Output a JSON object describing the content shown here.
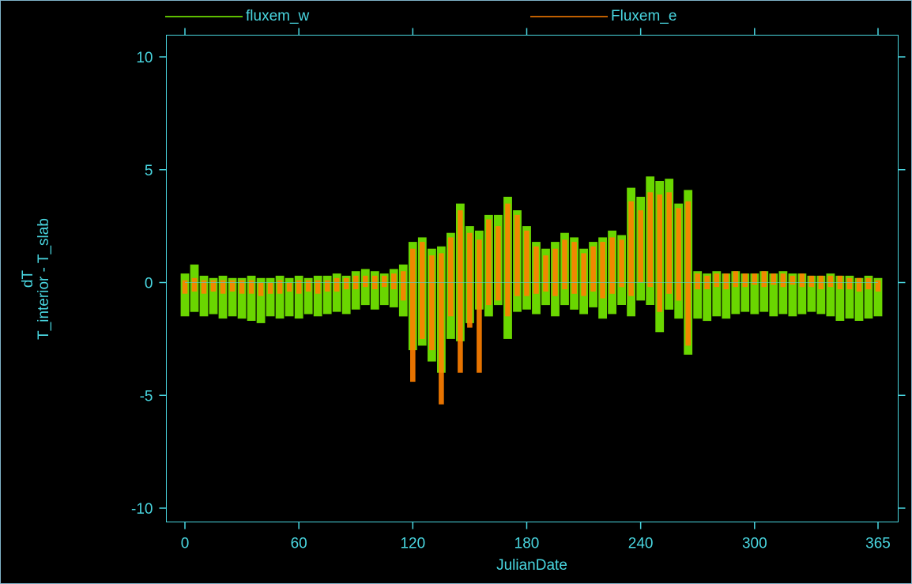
{
  "chart_data": {
    "type": "line",
    "title": "",
    "xlabel": "JulianDate",
    "ylabel_lines": [
      "dT",
      "T_interior - T_slab"
    ],
    "xlim": [
      0,
      365
    ],
    "ylim": [
      -11,
      11
    ],
    "xticks": [
      0,
      60,
      120,
      180,
      240,
      300,
      365
    ],
    "xtick_labels": [
      "0",
      "60",
      "120",
      "180",
      "240",
      "300",
      "365"
    ],
    "yticks": [
      10,
      5,
      0,
      -5,
      -10
    ],
    "ytick_labels": [
      "10",
      "5",
      "0",
      "-5",
      "-10"
    ],
    "grid": false,
    "legend_position": "top",
    "x_step": 5,
    "series": [
      {
        "name": "fluxem_w",
        "color": "#7cfc00",
        "x": [
          0,
          5,
          10,
          15,
          20,
          25,
          30,
          35,
          40,
          45,
          50,
          55,
          60,
          65,
          70,
          75,
          80,
          85,
          90,
          95,
          100,
          105,
          110,
          115,
          120,
          125,
          130,
          135,
          140,
          145,
          150,
          155,
          160,
          165,
          170,
          175,
          180,
          185,
          190,
          195,
          200,
          205,
          210,
          215,
          220,
          225,
          230,
          235,
          240,
          245,
          250,
          255,
          260,
          265,
          270,
          275,
          280,
          285,
          290,
          295,
          300,
          305,
          310,
          315,
          320,
          325,
          330,
          335,
          340,
          345,
          350,
          355,
          360,
          365
        ],
        "min": [
          -1.5,
          -1.3,
          -1.5,
          -1.4,
          -1.6,
          -1.5,
          -1.6,
          -1.7,
          -1.8,
          -1.5,
          -1.6,
          -1.5,
          -1.6,
          -1.4,
          -1.5,
          -1.4,
          -1.3,
          -1.4,
          -1.2,
          -1.0,
          -1.2,
          -1.0,
          -1.1,
          -1.5,
          -3.0,
          -2.8,
          -3.5,
          -4.0,
          -2.5,
          -2.6,
          -1.8,
          -1.2,
          -1.5,
          -1.0,
          -2.5,
          -1.3,
          -1.2,
          -1.4,
          -1.0,
          -1.5,
          -1.0,
          -1.2,
          -1.4,
          -1.1,
          -1.6,
          -1.4,
          -1.0,
          -1.5,
          -0.8,
          -1.0,
          -2.2,
          -1.2,
          -1.6,
          -3.2,
          -1.6,
          -1.7,
          -1.5,
          -1.6,
          -1.4,
          -1.3,
          -1.4,
          -1.3,
          -1.5,
          -1.4,
          -1.5,
          -1.4,
          -1.3,
          -1.4,
          -1.5,
          -1.7,
          -1.6,
          -1.7,
          -1.6,
          -1.5
        ],
        "max": [
          0.4,
          0.8,
          0.3,
          0.2,
          0.3,
          0.2,
          0.2,
          0.3,
          0.2,
          0.2,
          0.3,
          0.2,
          0.3,
          0.2,
          0.3,
          0.3,
          0.4,
          0.3,
          0.5,
          0.6,
          0.5,
          0.4,
          0.6,
          0.8,
          1.8,
          2.0,
          1.5,
          1.6,
          2.2,
          3.5,
          2.5,
          2.3,
          3.0,
          3.0,
          3.8,
          3.2,
          2.5,
          1.8,
          1.5,
          1.8,
          2.2,
          2.0,
          1.5,
          1.8,
          2.0,
          2.3,
          2.1,
          4.2,
          3.8,
          4.7,
          4.5,
          4.6,
          3.5,
          4.1,
          0.5,
          0.4,
          0.5,
          0.4,
          0.5,
          0.4,
          0.4,
          0.5,
          0.4,
          0.5,
          0.4,
          0.4,
          0.3,
          0.3,
          0.4,
          0.3,
          0.3,
          0.2,
          0.3,
          0.2
        ]
      },
      {
        "name": "Fluxem_e",
        "color": "#ff7f00",
        "x": [
          0,
          5,
          10,
          15,
          20,
          25,
          30,
          35,
          40,
          45,
          50,
          55,
          60,
          65,
          70,
          75,
          80,
          85,
          90,
          95,
          100,
          105,
          110,
          115,
          120,
          125,
          130,
          135,
          140,
          145,
          150,
          155,
          160,
          165,
          170,
          175,
          180,
          185,
          190,
          195,
          200,
          205,
          210,
          215,
          220,
          225,
          230,
          235,
          240,
          245,
          250,
          255,
          260,
          265,
          270,
          275,
          280,
          285,
          290,
          295,
          300,
          305,
          310,
          315,
          320,
          325,
          330,
          335,
          340,
          345,
          350,
          355,
          360,
          365
        ],
        "min": [
          -0.5,
          -0.4,
          -0.5,
          -0.4,
          -0.5,
          -0.4,
          -0.5,
          -0.5,
          -0.6,
          -0.5,
          -0.5,
          -0.4,
          -0.5,
          -0.4,
          -0.5,
          -0.4,
          -0.4,
          -0.3,
          -0.3,
          -0.2,
          -0.3,
          -0.2,
          -0.3,
          -0.8,
          -4.4,
          -2.5,
          -3.0,
          -5.4,
          -1.5,
          -4.0,
          -2.0,
          -4.0,
          -1.0,
          -0.8,
          -1.5,
          -0.6,
          -0.6,
          -0.5,
          -0.4,
          -0.6,
          -0.3,
          -0.5,
          -0.6,
          -0.4,
          -0.7,
          -0.5,
          -0.2,
          -0.6,
          0.0,
          -0.2,
          -1.3,
          -0.5,
          -0.8,
          -2.8,
          -0.3,
          -0.3,
          -0.2,
          -0.3,
          -0.2,
          -0.2,
          -0.1,
          -0.2,
          -0.1,
          -0.2,
          -0.1,
          -0.2,
          -0.2,
          -0.3,
          -0.2,
          -0.3,
          -0.3,
          -0.4,
          -0.3,
          -0.4
        ],
        "max": [
          0.1,
          0.2,
          0.1,
          0.1,
          0.1,
          0.1,
          0.1,
          0.1,
          0.0,
          0.0,
          0.1,
          0.0,
          0.1,
          0.1,
          0.1,
          0.1,
          0.2,
          0.2,
          0.3,
          0.3,
          0.3,
          0.3,
          0.4,
          0.5,
          1.5,
          1.8,
          1.2,
          1.3,
          2.0,
          3.2,
          2.2,
          1.9,
          2.8,
          2.5,
          3.5,
          3.0,
          2.3,
          1.6,
          1.2,
          1.5,
          1.9,
          1.8,
          1.3,
          1.6,
          1.8,
          2.0,
          1.9,
          3.6,
          3.2,
          4.0,
          3.9,
          4.0,
          3.3,
          3.6,
          0.4,
          0.3,
          0.4,
          0.4,
          0.5,
          0.4,
          0.4,
          0.5,
          0.4,
          0.4,
          0.3,
          0.4,
          0.3,
          0.3,
          0.3,
          0.3,
          0.2,
          0.2,
          0.2,
          0.1
        ]
      }
    ]
  }
}
